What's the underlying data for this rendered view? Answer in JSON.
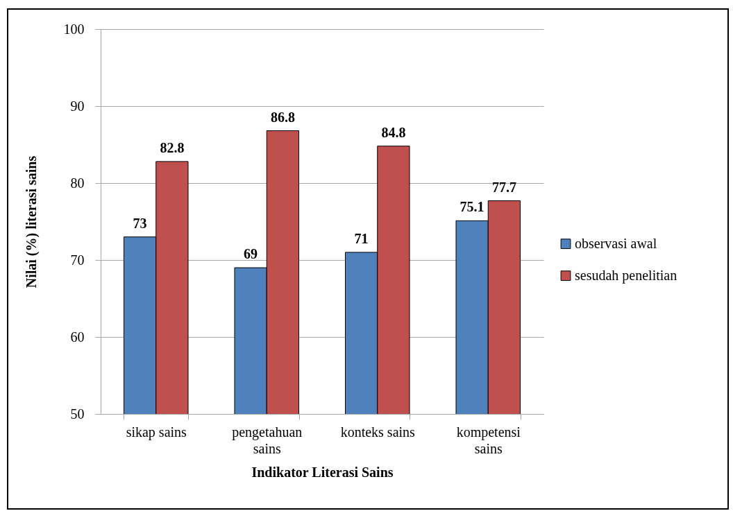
{
  "chart_data": {
    "type": "bar",
    "xlabel": "Indikator Literasi Sains",
    "ylabel": "Nilai (%) literasi sains",
    "categories": [
      "sikap sains",
      "pengetahuan sains",
      "konteks sains",
      "kompetensi sains"
    ],
    "series": [
      {
        "name": "observasi awal",
        "color": "#4f81bd",
        "values": [
          73,
          69,
          71,
          75.1
        ]
      },
      {
        "name": "sesudah penelitian",
        "color": "#c0504d",
        "values": [
          82.8,
          86.8,
          84.8,
          77.7
        ]
      }
    ],
    "ylim": [
      50,
      100
    ],
    "yticks": [
      50,
      60,
      70,
      80,
      90,
      100
    ],
    "grid": "y",
    "legend": "right",
    "data_labels": true
  }
}
